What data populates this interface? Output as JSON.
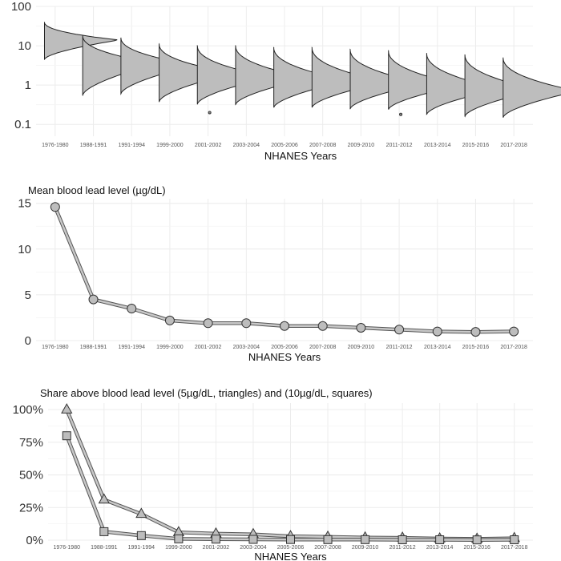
{
  "chart_data": [
    {
      "type": "violin",
      "title": "",
      "xlabel": "NHANES Years",
      "ylabel": "",
      "yscale": "log10",
      "ylim": [
        0.05,
        100
      ],
      "yticks": [
        0.1,
        1,
        10,
        100
      ],
      "ytick_labels": [
        "0.1",
        "1",
        "10",
        "100"
      ],
      "categories": [
        "1976-1980",
        "1988-1991",
        "1991-1994",
        "1999-2000",
        "2001-2002",
        "2003-2004",
        "2005-2006",
        "2007-2008",
        "2009-2010",
        "2011-2012",
        "2013-2014",
        "2015-2016",
        "2017-2018"
      ],
      "distributions": [
        {
          "min": 4.5,
          "mode": 14,
          "max": 40
        },
        {
          "min": 0.55,
          "mode": 3.5,
          "max": 18
        },
        {
          "min": 0.6,
          "mode": 3.2,
          "max": 16
        },
        {
          "min": 0.38,
          "mode": 2.0,
          "max": 11
        },
        {
          "min": 0.33,
          "mode": 1.6,
          "max": 10
        },
        {
          "min": 0.32,
          "mode": 1.5,
          "max": 10
        },
        {
          "min": 0.27,
          "mode": 1.3,
          "max": 9
        },
        {
          "min": 0.27,
          "mode": 1.2,
          "max": 9
        },
        {
          "min": 0.25,
          "mode": 1.1,
          "max": 8
        },
        {
          "min": 0.24,
          "mode": 1.0,
          "max": 7.5
        },
        {
          "min": 0.18,
          "mode": 0.8,
          "max": 6.5
        },
        {
          "min": 0.16,
          "mode": 0.75,
          "max": 6
        },
        {
          "min": 0.15,
          "mode": 0.7,
          "max": 5
        }
      ],
      "outliers": [
        {
          "category": "2001-2002",
          "value": 0.2
        },
        {
          "category": "2011-2012",
          "value": 0.18
        }
      ],
      "fill_color": "#bdbdbd",
      "grid": true
    },
    {
      "type": "line",
      "title": "Mean blood lead level (µg/dL)",
      "xlabel": "NHANES Years",
      "ylabel": "",
      "ylim": [
        0,
        15.5
      ],
      "yticks": [
        0,
        5,
        10,
        15
      ],
      "categories": [
        "1976-1980",
        "1988-1991",
        "1991-1994",
        "1999-2000",
        "2001-2002",
        "2003-2004",
        "2005-2006",
        "2007-2008",
        "2009-2010",
        "2011-2012",
        "2013-2014",
        "2015-2016",
        "2017-2018"
      ],
      "series": [
        {
          "marker": "circle",
          "values": [
            14.6,
            4.5,
            3.5,
            2.2,
            1.9,
            1.9,
            1.6,
            1.6,
            1.4,
            1.2,
            1.0,
            0.95,
            1.0
          ]
        }
      ],
      "grid": true
    },
    {
      "type": "line",
      "title": "Share above blood lead level (5µg/dL, triangles) and (10µg/dL, squares)",
      "xlabel": "NHANES Years",
      "ylabel": "",
      "ylim": [
        0,
        1.05
      ],
      "yticks": [
        0,
        0.25,
        0.5,
        0.75,
        1.0
      ],
      "ytick_labels": [
        "0%",
        "25%",
        "50%",
        "75%",
        "100%"
      ],
      "categories": [
        "1976-1980",
        "1988-1991",
        "1991-1994",
        "1999-2000",
        "2001-2002",
        "2003-2004",
        "2005-2006",
        "2007-2008",
        "2009-2010",
        "2011-2012",
        "2013-2014",
        "2015-2016",
        "2017-2018"
      ],
      "series": [
        {
          "marker": "triangle",
          "values": [
            1.0,
            0.31,
            0.2,
            0.06,
            0.05,
            0.045,
            0.03,
            0.025,
            0.02,
            0.018,
            0.012,
            0.01,
            0.015
          ]
        },
        {
          "marker": "square",
          "values": [
            0.8,
            0.065,
            0.035,
            0.01,
            0.008,
            0.006,
            0.005,
            0.004,
            0.004,
            0.003,
            0.003,
            0.002,
            0.003
          ]
        }
      ],
      "grid": true
    }
  ]
}
